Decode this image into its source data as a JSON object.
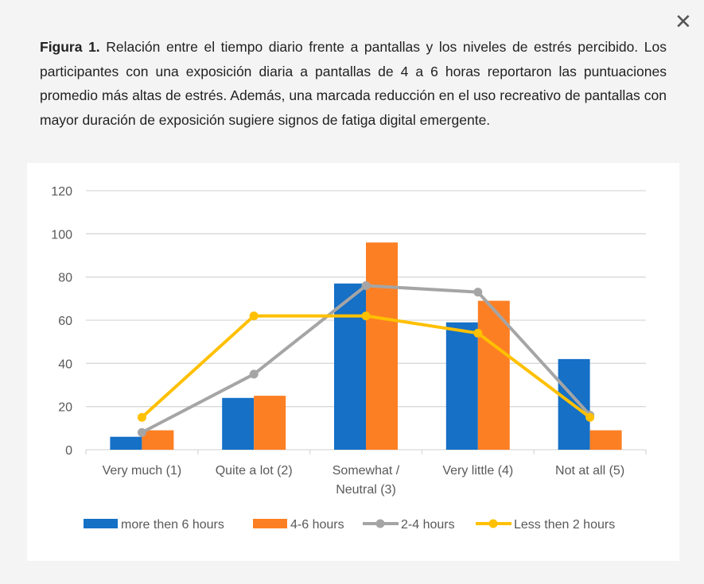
{
  "close_icon": "close-icon",
  "caption": {
    "label": "Figura 1.",
    "text": " Relación entre el tiempo diario frente a pantallas y los niveles de estrés percibido. Los participantes con una exposición diaria a pantallas de 4 a 6 horas reportaron las puntuaciones promedio más altas de estrés. Además, una marcada reducción en el uso recreativo de pantallas con mayor duración de exposición sugiere signos de fatiga digital emergente."
  },
  "chart_data": {
    "type": "bar",
    "categories": [
      "Very much (1)",
      "Quite a lot (2)",
      "Somewhat / Neutral (3)",
      "Very little (4)",
      "Not at all (5)"
    ],
    "series": [
      {
        "name": "more then 6 hours",
        "type": "bar",
        "color": "#1570c6",
        "values": [
          6,
          24,
          77,
          59,
          42
        ]
      },
      {
        "name": "4-6 hours",
        "type": "bar",
        "color": "#fd7f24",
        "values": [
          9,
          25,
          96,
          69,
          9
        ]
      },
      {
        "name": "2-4 hours",
        "type": "line",
        "color": "#a5a5a5",
        "values": [
          8,
          35,
          76,
          73,
          16
        ]
      },
      {
        "name": "Less then 2 hours",
        "type": "line",
        "color": "#ffc000",
        "values": [
          15,
          62,
          62,
          54,
          15
        ]
      }
    ],
    "yticks": [
      0,
      20,
      40,
      60,
      80,
      100,
      120
    ],
    "ylim": [
      0,
      120
    ],
    "grid": true,
    "legend": "bottom"
  }
}
